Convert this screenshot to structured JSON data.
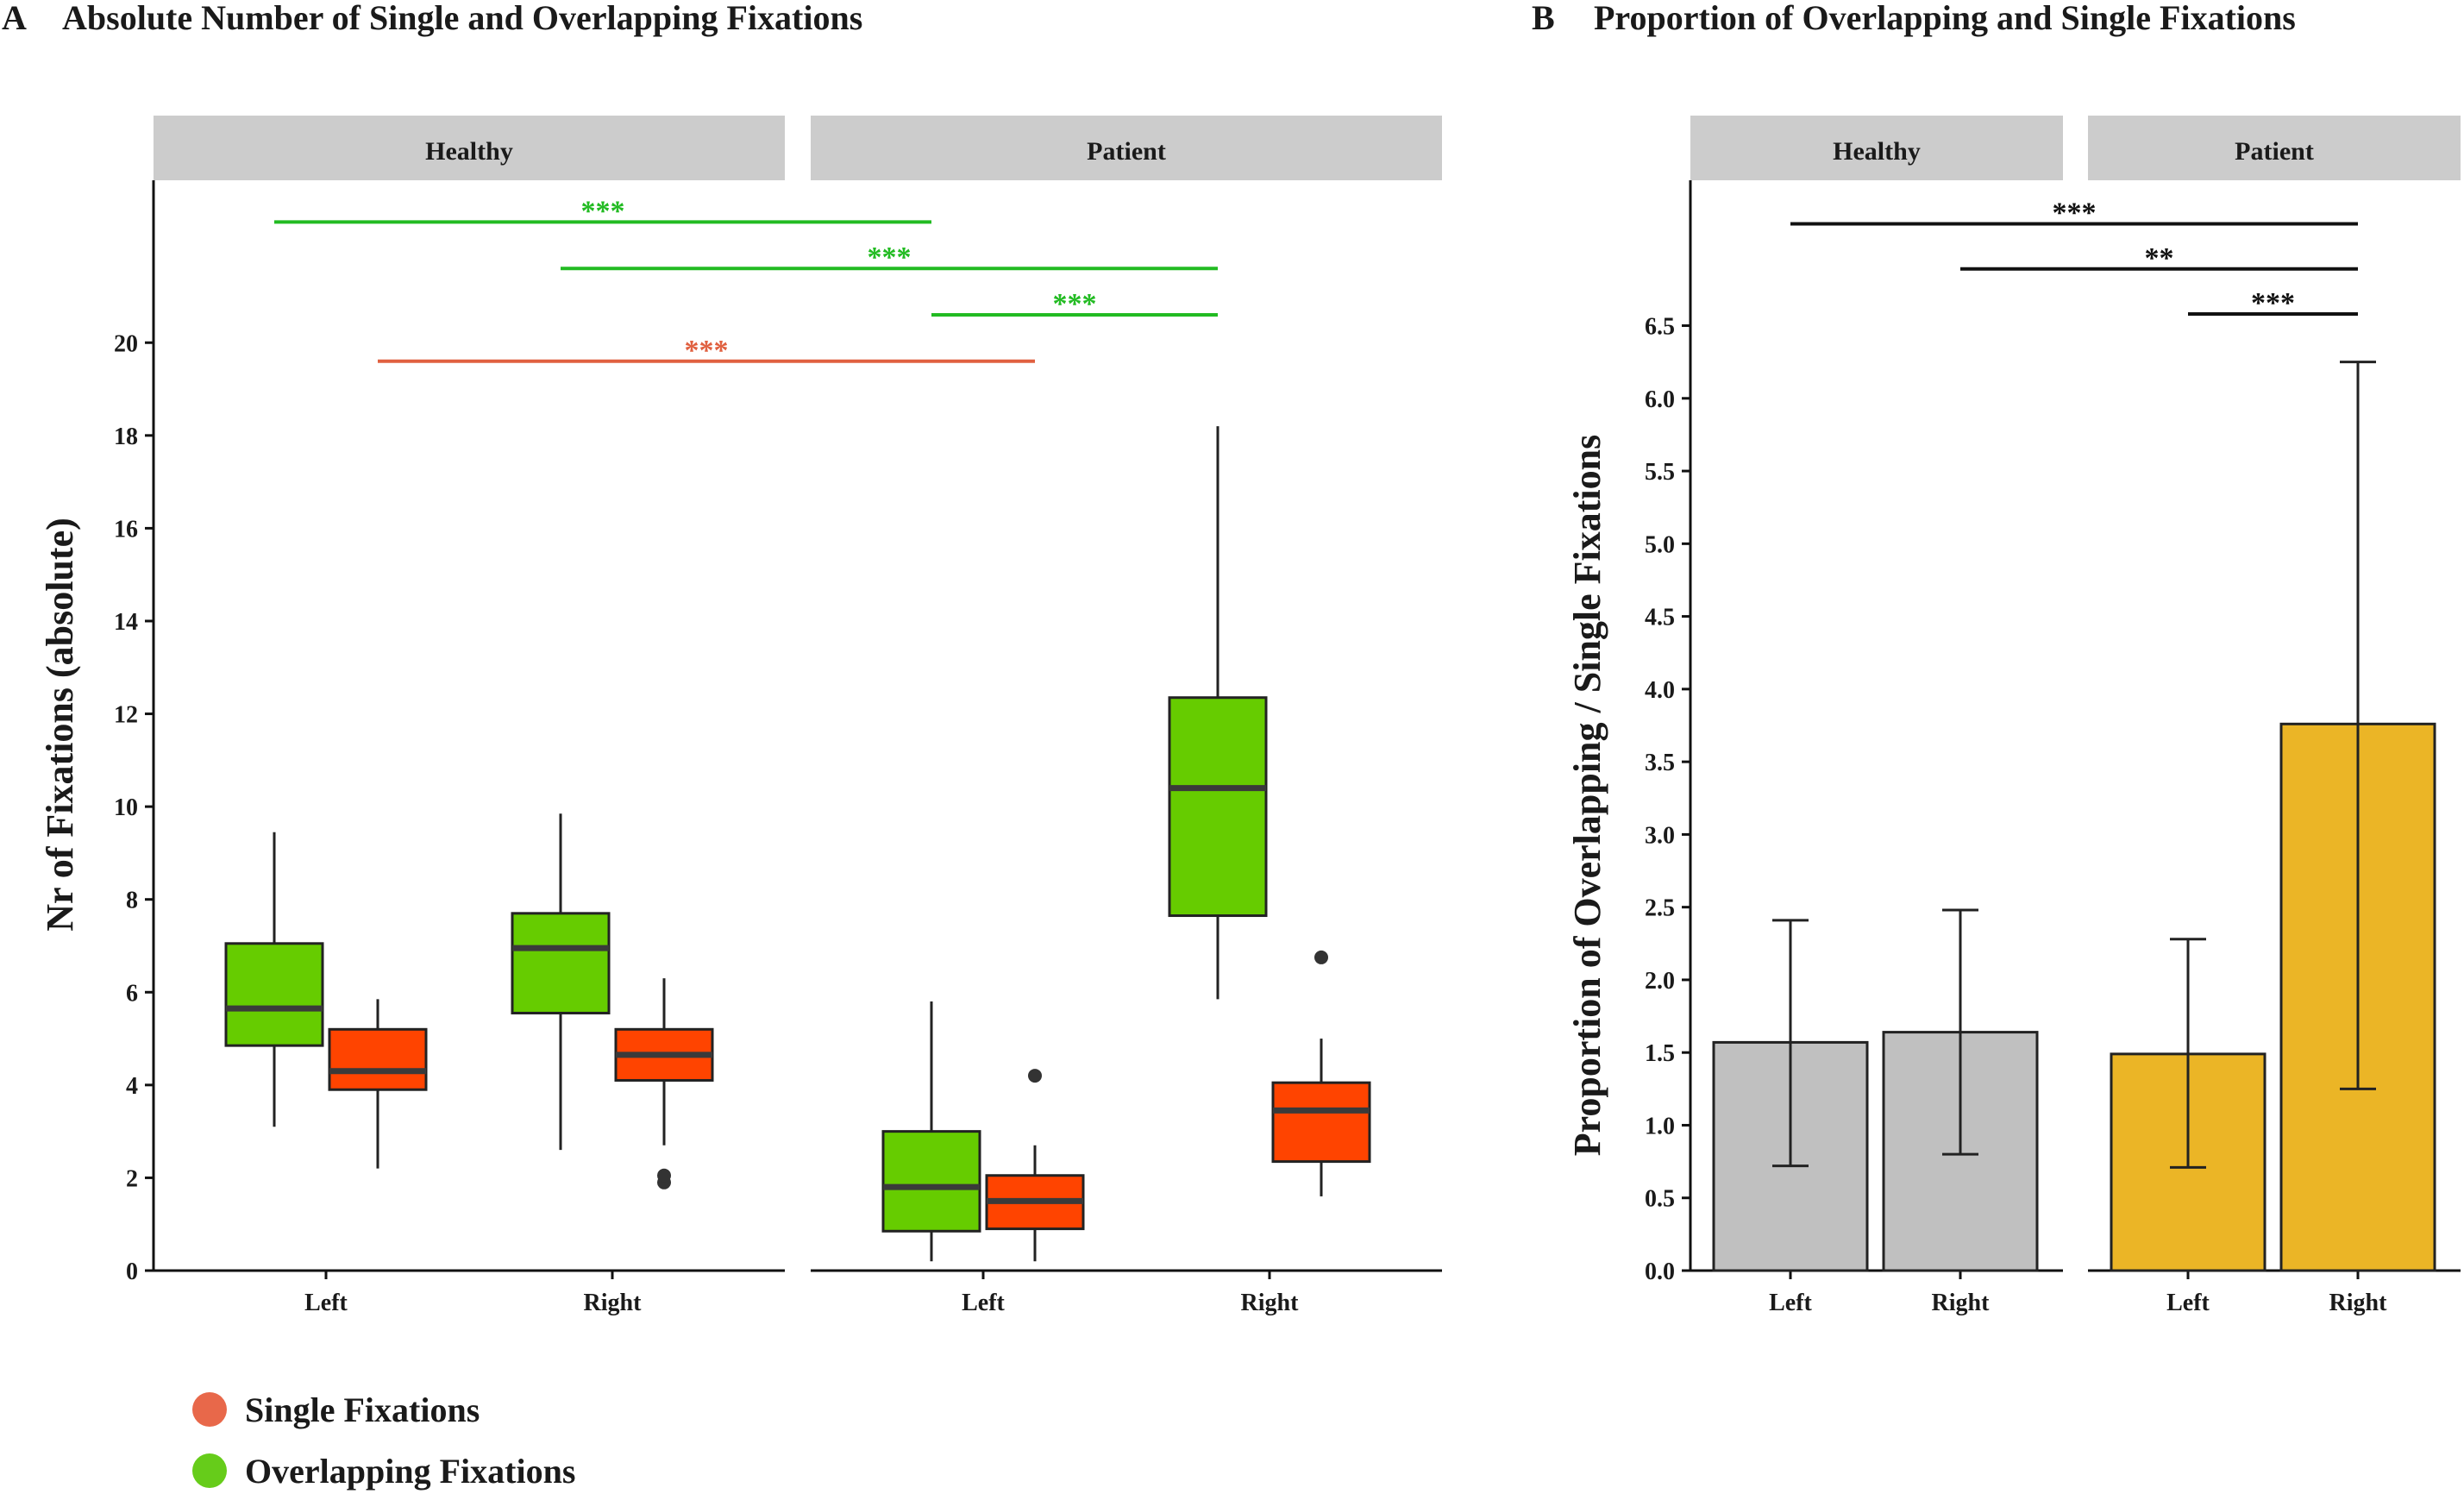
{
  "colors": {
    "overlapping": "#66cc00",
    "single": "#ff4400",
    "legend_single": "#e8684a",
    "legend_overlapping": "#66cc1a",
    "sig_green": "#22bb22",
    "sig_red": "#e06040",
    "sig_black": "#111111",
    "strip_bg": "#cccccc",
    "bar_healthy": "#c0c0c0",
    "bar_patient": "#ebb526",
    "median": "#3a3a3a",
    "outline": "#222222"
  },
  "panels": {
    "a": {
      "letter": "A",
      "title": "Absolute Number of Single and Overlapping Fixations"
    },
    "b": {
      "letter": "B",
      "title": "Proportion of Overlapping and Single Fixations"
    }
  },
  "legend": {
    "single": "Single Fixations",
    "overlapping": "Overlapping Fixations"
  },
  "chart_data": [
    {
      "type": "box",
      "panel": "A",
      "title": "Absolute Number of Single and Overlapping Fixations",
      "ylabel": "Nr of Fixations (absolute)",
      "ylim": [
        0,
        23.5
      ],
      "yticks": [
        0,
        2,
        4,
        6,
        8,
        10,
        12,
        14,
        16,
        18,
        20
      ],
      "facets": [
        "Healthy",
        "Patient"
      ],
      "categories": [
        "Left",
        "Right"
      ],
      "series": [
        {
          "name": "Overlapping Fixations",
          "boxes": [
            {
              "facet": "Healthy",
              "category": "Left",
              "min": 3.1,
              "q1": 4.85,
              "median": 5.65,
              "q3": 7.05,
              "max": 9.45,
              "outliers": []
            },
            {
              "facet": "Healthy",
              "category": "Right",
              "min": 2.6,
              "q1": 5.55,
              "median": 6.95,
              "q3": 7.7,
              "max": 9.85,
              "outliers": []
            },
            {
              "facet": "Patient",
              "category": "Left",
              "min": 0.2,
              "q1": 0.85,
              "median": 1.8,
              "q3": 3.0,
              "max": 5.8,
              "outliers": []
            },
            {
              "facet": "Patient",
              "category": "Right",
              "min": 5.85,
              "q1": 7.65,
              "median": 10.4,
              "q3": 12.35,
              "max": 18.2,
              "outliers": []
            }
          ]
        },
        {
          "name": "Single Fixations",
          "boxes": [
            {
              "facet": "Healthy",
              "category": "Left",
              "min": 2.2,
              "q1": 3.9,
              "median": 4.3,
              "q3": 5.2,
              "max": 5.85,
              "outliers": []
            },
            {
              "facet": "Healthy",
              "category": "Right",
              "min": 2.7,
              "q1": 4.1,
              "median": 4.65,
              "q3": 5.2,
              "max": 6.3,
              "outliers": [
                1.9,
                2.05
              ]
            },
            {
              "facet": "Patient",
              "category": "Left",
              "min": 0.2,
              "q1": 0.9,
              "median": 1.5,
              "q3": 2.05,
              "max": 2.7,
              "outliers": [
                4.2
              ]
            },
            {
              "facet": "Patient",
              "category": "Right",
              "min": 1.6,
              "q1": 2.35,
              "median": 3.45,
              "q3": 4.05,
              "max": 5.0,
              "outliers": [
                6.75
              ]
            }
          ]
        }
      ],
      "annotations": [
        {
          "text": "***",
          "color": "green",
          "from": "Healthy Left Overlapping",
          "to": "Patient Left Overlapping",
          "y": 22.6
        },
        {
          "text": "***",
          "color": "green",
          "from": "Healthy Right Overlapping",
          "to": "Patient Right Overlapping",
          "y": 21.6
        },
        {
          "text": "***",
          "color": "green",
          "from": "Patient Left Overlapping",
          "to": "Patient Right Overlapping",
          "y": 20.6
        },
        {
          "text": "***",
          "color": "red",
          "from": "Healthy Left Single",
          "to": "Patient Left Single",
          "y": 19.6
        }
      ]
    },
    {
      "type": "bar",
      "panel": "B",
      "title": "Proportion of Overlapping and Single Fixations",
      "ylabel": "Proportion of Overlapping / Single Fixations",
      "ylim": [
        0,
        7.5
      ],
      "yticks": [
        0.0,
        0.5,
        1.0,
        1.5,
        2.0,
        2.5,
        3.0,
        3.5,
        4.0,
        4.5,
        5.0,
        5.5,
        6.0,
        6.5
      ],
      "facets": [
        "Healthy",
        "Patient"
      ],
      "categories": [
        "Left",
        "Right"
      ],
      "bars": [
        {
          "facet": "Healthy",
          "category": "Left",
          "value": 1.57,
          "err_low": 0.72,
          "err_high": 2.41
        },
        {
          "facet": "Healthy",
          "category": "Right",
          "value": 1.64,
          "err_low": 0.8,
          "err_high": 2.48
        },
        {
          "facet": "Patient",
          "category": "Left",
          "value": 1.49,
          "err_low": 0.71,
          "err_high": 2.28
        },
        {
          "facet": "Patient",
          "category": "Right",
          "value": 3.76,
          "err_low": 1.25,
          "err_high": 6.25
        }
      ],
      "annotations": [
        {
          "text": "***",
          "from": "Healthy Left",
          "to": "Patient Right",
          "y": 7.2
        },
        {
          "text": "**",
          "from": "Healthy Right",
          "to": "Patient Right",
          "y": 6.89
        },
        {
          "text": "***",
          "from": "Patient Left",
          "to": "Patient Right",
          "y": 6.58
        }
      ]
    }
  ]
}
